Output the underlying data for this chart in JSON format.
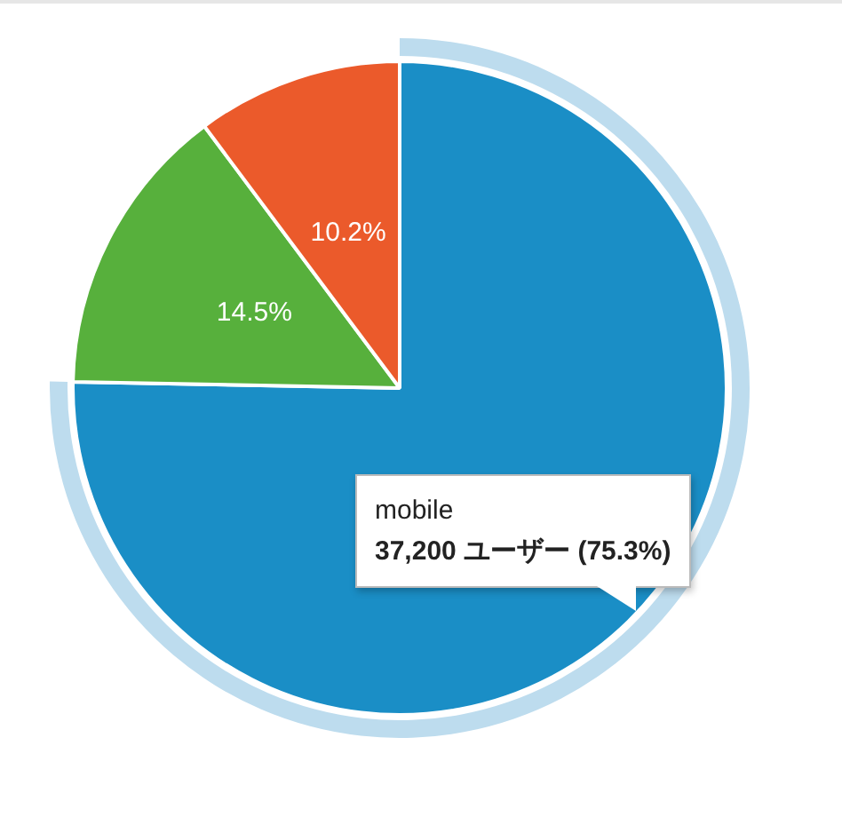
{
  "chart_data": {
    "type": "pie",
    "categories": [
      "mobile",
      null,
      null
    ],
    "values": [
      75.3,
      14.5,
      10.2
    ],
    "colors": [
      "#1a8ec6",
      "#57b03c",
      "#eb5a2b"
    ],
    "value_labels": [
      null,
      "14.5%",
      "10.2%"
    ],
    "legend": false,
    "annotations": [
      "37,200 ユーザー (75.3%)"
    ]
  }
}
